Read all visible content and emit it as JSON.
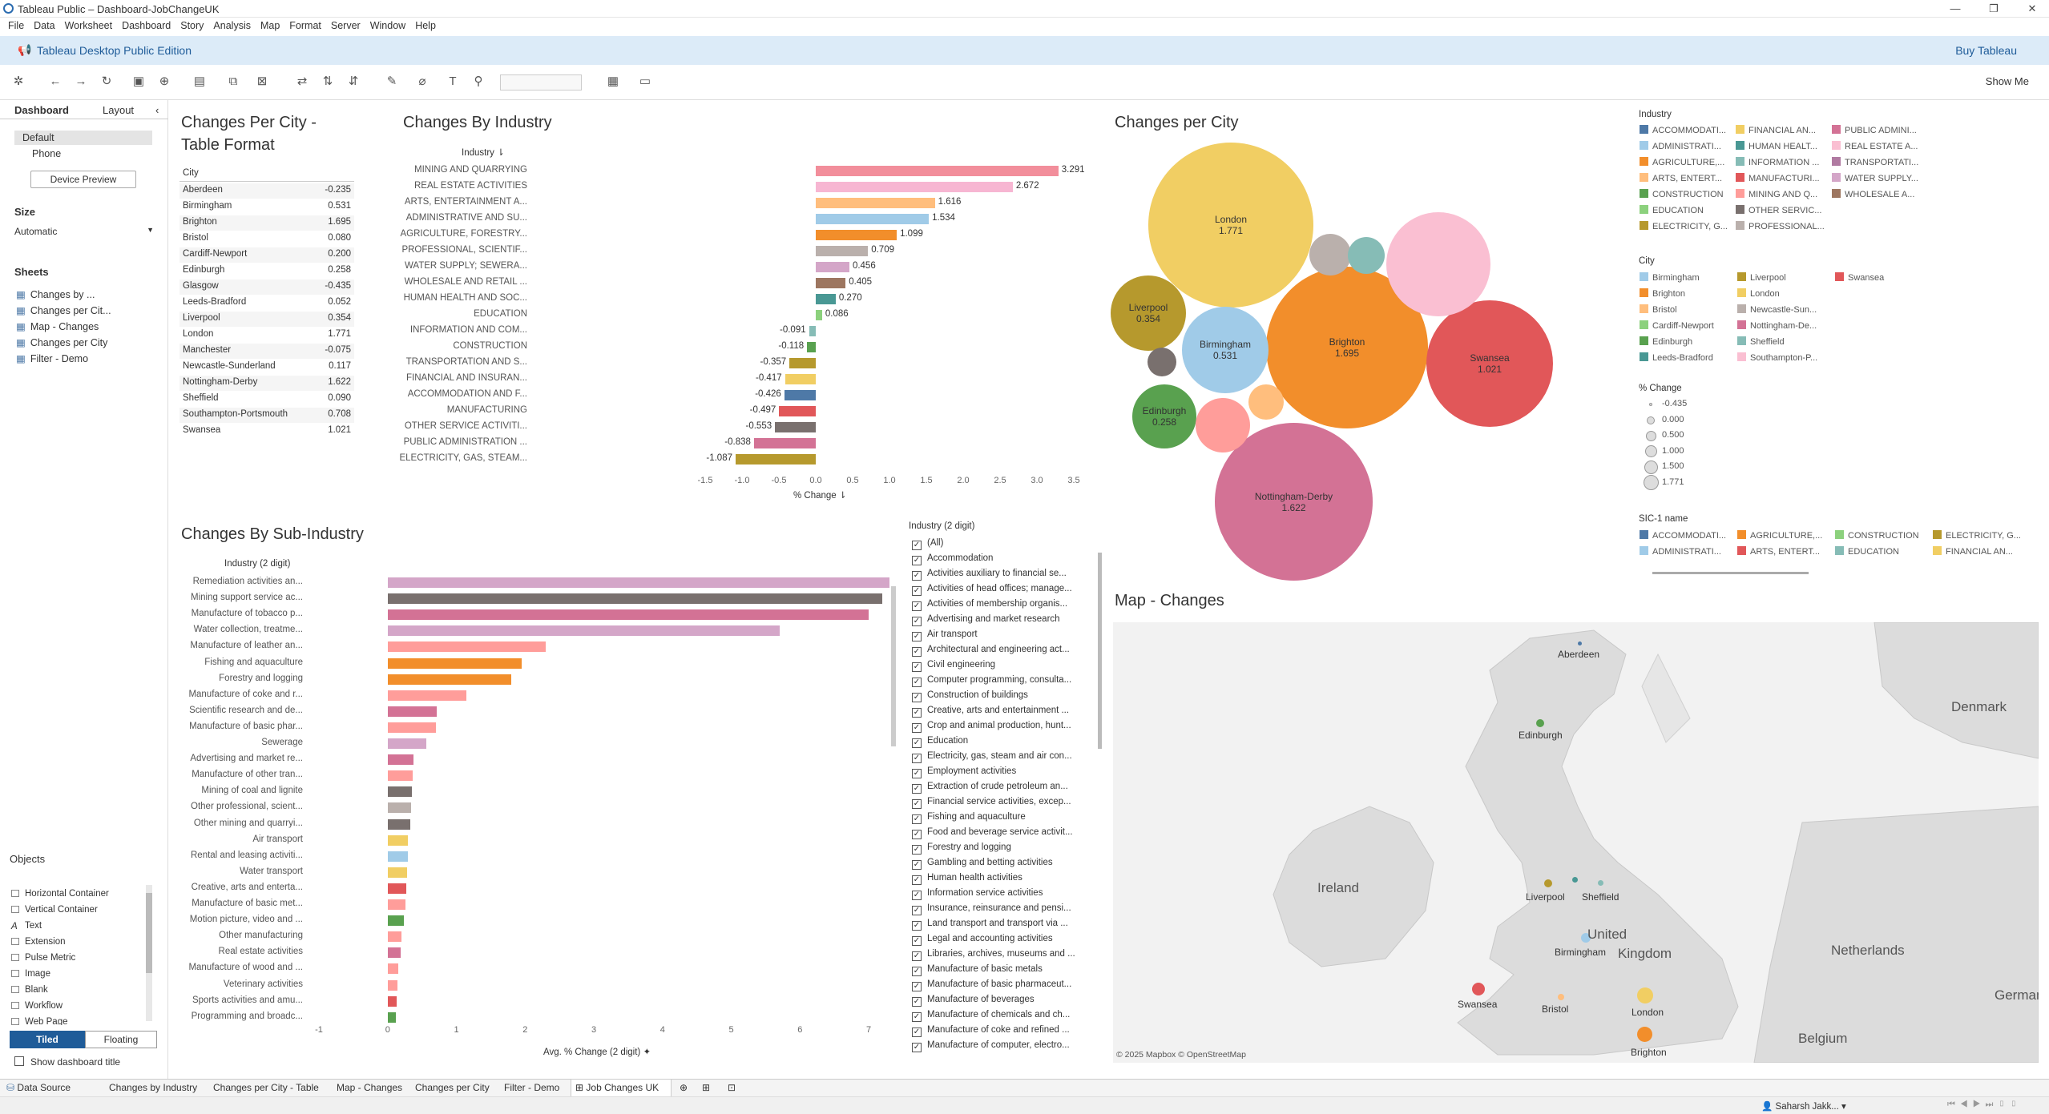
{
  "window": {
    "title": "Tableau Public – Dashboard-JobChangeUK"
  },
  "menu": [
    "File",
    "Data",
    "Worksheet",
    "Dashboard",
    "Story",
    "Analysis",
    "Map",
    "Format",
    "Server",
    "Window",
    "Help"
  ],
  "banner": {
    "edition": "Tableau Desktop Public Edition",
    "buy": "Buy Tableau"
  },
  "toolbar": {
    "show_me": "Show Me"
  },
  "left": {
    "tab_dashboard": "Dashboard",
    "tab_layout": "Layout",
    "devices": [
      "Default",
      "Phone"
    ],
    "device_preview": "Device Preview",
    "size_label": "Size",
    "size_value": "Automatic",
    "sheets_label": "Sheets",
    "sheets": [
      "Changes by ...",
      "Changes per Cit...",
      "Map - Changes",
      "Changes per City",
      "Filter - Demo"
    ],
    "objects_label": "Objects",
    "objects": [
      "Horizontal Container",
      "Vertical Container",
      "Text",
      "Extension",
      "Pulse Metric",
      "Image",
      "Blank",
      "Workflow",
      "Web Page"
    ],
    "tiled": "Tiled",
    "floating": "Floating",
    "show_title": "Show dashboard title"
  },
  "city_table": {
    "title_l1": "Changes Per City -",
    "title_l2": "Table Format",
    "header": "City",
    "rows": [
      [
        "Aberdeen",
        "-0.235"
      ],
      [
        "Birmingham",
        "0.531"
      ],
      [
        "Brighton",
        "1.695"
      ],
      [
        "Bristol",
        "0.080"
      ],
      [
        "Cardiff-Newport",
        "0.200"
      ],
      [
        "Edinburgh",
        "0.258"
      ],
      [
        "Glasgow",
        "-0.435"
      ],
      [
        "Leeds-Bradford",
        "0.052"
      ],
      [
        "Liverpool",
        "0.354"
      ],
      [
        "London",
        "1.771"
      ],
      [
        "Manchester",
        "-0.075"
      ],
      [
        "Newcastle-Sunderland",
        "0.117"
      ],
      [
        "Nottingham-Derby",
        "1.622"
      ],
      [
        "Sheffield",
        "0.090"
      ],
      [
        "Southampton-Portsmouth",
        "0.708"
      ],
      [
        "Swansea",
        "1.021"
      ]
    ]
  },
  "chart_data": [
    {
      "type": "bar",
      "title": "Changes By Industry",
      "ylabel": "Industry",
      "xlabel": "% Change",
      "xlim": [
        -1.5,
        3.5
      ],
      "xticks": [
        "-1.5",
        "-1.0",
        "-0.5",
        "0.0",
        "0.5",
        "1.0",
        "1.5",
        "2.0",
        "2.5",
        "3.0",
        "3.5"
      ],
      "categories": [
        "MINING AND QUARRYING",
        "REAL ESTATE ACTIVITIES",
        "ARTS, ENTERTAINMENT A...",
        "ADMINISTRATIVE AND SU...",
        "AGRICULTURE, FORESTRY...",
        "PROFESSIONAL, SCIENTIF...",
        "WATER SUPPLY; SEWERA...",
        "WHOLESALE AND RETAIL ...",
        "HUMAN HEALTH AND SOC...",
        "EDUCATION",
        "INFORMATION AND COM...",
        "CONSTRUCTION",
        "TRANSPORTATION AND S...",
        "FINANCIAL AND INSURAN...",
        "ACCOMMODATION AND F...",
        "MANUFACTURING",
        "OTHER SERVICE ACTIVITI...",
        "PUBLIC ADMINISTRATION ...",
        "ELECTRICITY, GAS, STEAM..."
      ],
      "values": [
        3.291,
        2.672,
        1.616,
        1.534,
        1.099,
        0.709,
        0.456,
        0.405,
        0.27,
        0.086,
        -0.091,
        -0.118,
        -0.357,
        -0.417,
        -0.426,
        -0.497,
        -0.553,
        -0.838,
        -1.087
      ],
      "labels": [
        "3.291",
        "2.672",
        "1.616",
        "1.534",
        "1.099",
        "0.709",
        "0.456",
        "0.405",
        "0.270",
        "0.086",
        "-0.091",
        "-0.118",
        "-0.357",
        "-0.417",
        "-0.426",
        "-0.497",
        "-0.553",
        "-0.838",
        "-1.087"
      ],
      "colors": [
        "#f28e9b",
        "#f7b6d2",
        "#ffbe7d",
        "#a0cbe8",
        "#f28e2b",
        "#bab0ac",
        "#d4a6c8",
        "#9d7660",
        "#499894",
        "#8cd17d",
        "#86bcb6",
        "#59a14f",
        "#b6992d",
        "#f1ce63",
        "#4e79a7",
        "#e15759",
        "#79706e",
        "#d37295",
        "#b6992d"
      ]
    },
    {
      "type": "bar",
      "title": "Changes By Sub-Industry",
      "ylabel": "Industry (2 digit)",
      "xlabel": "Avg. % Change (2 digit)",
      "xlim": [
        -1,
        7
      ],
      "xticks": [
        "-1",
        "0",
        "1",
        "2",
        "3",
        "4",
        "5",
        "6",
        "7"
      ],
      "categories": [
        "Remediation activities an...",
        "Mining support service ac...",
        "Manufacture of tobacco p...",
        "Water collection, treatme...",
        "Manufacture of leather an...",
        "Fishing and aquaculture",
        "Forestry and logging",
        "Manufacture of coke and r...",
        "Scientific research and de...",
        "Manufacture of basic phar...",
        "Sewerage",
        "Advertising and market re...",
        "Manufacture of other tran...",
        "Mining of coal and lignite",
        "Other professional, scient...",
        "Other mining and quarryi...",
        "Air transport",
        "Rental and leasing activiti...",
        "Water transport",
        "Creative, arts and enterta...",
        "Manufacture of basic met...",
        "Motion picture, video and ...",
        "Other manufacturing",
        "Real estate activities",
        "Manufacture of wood and ...",
        "Veterinary activities",
        "Sports activities and amu...",
        "Programming and broadc..."
      ],
      "values": [
        7.3,
        7.2,
        7.0,
        5.7,
        2.3,
        1.95,
        1.8,
        1.15,
        0.72,
        0.7,
        0.56,
        0.38,
        0.37,
        0.35,
        0.34,
        0.33,
        0.3,
        0.29,
        0.28,
        0.27,
        0.26,
        0.24,
        0.2,
        0.19,
        0.16,
        0.14,
        0.13,
        0.12
      ],
      "colors": [
        "#d4a6c8",
        "#79706e",
        "#d37295",
        "#d4a6c8",
        "#ff9d9a",
        "#f28e2b",
        "#f28e2b",
        "#ff9d9a",
        "#d37295",
        "#ff9d9a",
        "#d4a6c8",
        "#d37295",
        "#ff9d9a",
        "#79706e",
        "#bab0ac",
        "#79706e",
        "#f1ce63",
        "#a0cbe8",
        "#f1ce63",
        "#e15759",
        "#ff9d9a",
        "#59a14f",
        "#ff9d9a",
        "#d37295",
        "#ff9d9a",
        "#ff9d9a",
        "#e15759",
        "#59a14f"
      ]
    },
    {
      "type": "bubble",
      "title": "Changes per City",
      "bubbles": [
        {
          "name": "London",
          "value": "1.771",
          "color": "#f1ce63"
        },
        {
          "name": "Brighton",
          "value": "1.695",
          "color": "#f28e2b"
        },
        {
          "name": "Nottingham-Derby",
          "value": "1.622",
          "color": "#d37295"
        },
        {
          "name": "Swansea",
          "value": "1.021",
          "color": "#e15759"
        },
        {
          "name": "Birmingham",
          "value": "0.531",
          "color": "#a0cbe8"
        },
        {
          "name": "Liverpool",
          "value": "0.354",
          "color": "#b6992d"
        },
        {
          "name": "Edinburgh",
          "value": "0.258",
          "color": "#59a14f"
        },
        {
          "name": "",
          "value": "",
          "color": "#fabfd2"
        },
        {
          "name": "",
          "value": "",
          "color": "#ff9d9a"
        },
        {
          "name": "",
          "value": "",
          "color": "#bab0ac"
        },
        {
          "name": "",
          "value": "",
          "color": "#86bcb6"
        },
        {
          "name": "",
          "value": "",
          "color": "#ffbe7d"
        },
        {
          "name": "",
          "value": "",
          "color": "#79706e"
        }
      ]
    }
  ],
  "legend": {
    "industry_title": "Industry",
    "industry": [
      [
        "ACCOMMODATI...",
        "#4e79a7"
      ],
      [
        "ADMINISTRATI...",
        "#a0cbe8"
      ],
      [
        "AGRICULTURE,...",
        "#f28e2b"
      ],
      [
        "ARTS, ENTERT...",
        "#ffbe7d"
      ],
      [
        "CONSTRUCTION",
        "#59a14f"
      ],
      [
        "EDUCATION",
        "#8cd17d"
      ],
      [
        "ELECTRICITY, G...",
        "#b6992d"
      ],
      [
        "FINANCIAL AN...",
        "#f1ce63"
      ],
      [
        "HUMAN HEALT...",
        "#499894"
      ],
      [
        "INFORMATION ...",
        "#86bcb6"
      ],
      [
        "MANUFACTURI...",
        "#e15759"
      ],
      [
        "MINING AND Q...",
        "#ff9d9a"
      ],
      [
        "OTHER SERVIC...",
        "#79706e"
      ],
      [
        "PROFESSIONAL...",
        "#bab0ac"
      ],
      [
        "PUBLIC ADMINI...",
        "#d37295"
      ],
      [
        "REAL ESTATE A...",
        "#fabfd2"
      ],
      [
        "TRANSPORTATI...",
        "#b07aa1"
      ],
      [
        "WATER SUPPLY...",
        "#d4a6c8"
      ],
      [
        "WHOLESALE A...",
        "#9d7660"
      ]
    ],
    "city_title": "City",
    "city": [
      [
        "Birmingham",
        "#a0cbe8"
      ],
      [
        "Brighton",
        "#f28e2b"
      ],
      [
        "Bristol",
        "#ffbe7d"
      ],
      [
        "Cardiff-Newport",
        "#8cd17d"
      ],
      [
        "Edinburgh",
        "#59a14f"
      ],
      [
        "Leeds-Bradford",
        "#499894"
      ],
      [
        "Liverpool",
        "#b6992d"
      ],
      [
        "London",
        "#f1ce63"
      ],
      [
        "Newcastle-Sun...",
        "#bab0ac"
      ],
      [
        "Nottingham-De...",
        "#d37295"
      ],
      [
        "Sheffield",
        "#86bcb6"
      ],
      [
        "Southampton-P...",
        "#fabfd2"
      ],
      [
        "Swansea",
        "#e15759"
      ]
    ],
    "pct_title": "% Change",
    "pct": [
      "-0.435",
      "0.000",
      "0.500",
      "1.000",
      "1.500",
      "1.771"
    ],
    "sic_title": "SIC-1 name",
    "sic": [
      [
        "ACCOMMODATI...",
        "#4e79a7"
      ],
      [
        "ADMINISTRATI...",
        "#a0cbe8"
      ],
      [
        "AGRICULTURE,...",
        "#f28e2b"
      ],
      [
        "ARTS, ENTERT...",
        "#e15759"
      ],
      [
        "CONSTRUCTION",
        "#8cd17d"
      ],
      [
        "EDUCATION",
        "#86bcb6"
      ],
      [
        "ELECTRICITY, G...",
        "#b6992d"
      ],
      [
        "FINANCIAL AN...",
        "#f1ce63"
      ]
    ]
  },
  "filter": {
    "title": "Industry (2 digit)",
    "items": [
      "(All)",
      "Accommodation",
      "Activities auxiliary to financial se...",
      "Activities of head offices; manage...",
      "Activities of membership organis...",
      "Advertising and market research",
      "Air transport",
      "Architectural and engineering act...",
      "Civil engineering",
      "Computer programming, consulta...",
      "Construction of buildings",
      "Creative, arts and entertainment ...",
      "Crop and animal production, hunt...",
      "Education",
      "Electricity, gas, steam and air con...",
      "Employment activities",
      "Extraction of crude petroleum an...",
      "Financial service activities, excep...",
      "Fishing and aquaculture",
      "Food and beverage service activit...",
      "Forestry and logging",
      "Gambling and betting activities",
      "Human health activities",
      "Information service activities",
      "Insurance, reinsurance and pensi...",
      "Land transport and transport via ...",
      "Legal and accounting activities",
      "Libraries, archives, museums and ...",
      "Manufacture of basic metals",
      "Manufacture of basic pharmaceut...",
      "Manufacture of beverages",
      "Manufacture of chemicals and ch...",
      "Manufacture of coke and refined ...",
      "Manufacture of computer, electro..."
    ]
  },
  "map": {
    "title": "Map - Changes",
    "attribution": "© 2025 Mapbox © OpenStreetMap",
    "places": [
      "Aberdeen",
      "Edinburgh",
      "Liverpool",
      "Sheffield",
      "Birmingham",
      "Swansea",
      "Bristol",
      "London",
      "Brighton"
    ],
    "geo": [
      "Denmark",
      "Ireland",
      "United",
      "Kingdom",
      "Netherlands",
      "Belgium",
      "German"
    ]
  },
  "tabs": [
    "Data Source",
    "Changes by Industry",
    "Changes per City - Table",
    "Map - Changes",
    "Changes per City",
    "Filter - Demo",
    "Job Changes UK"
  ],
  "status": {
    "user": "Saharsh Jakk..."
  }
}
